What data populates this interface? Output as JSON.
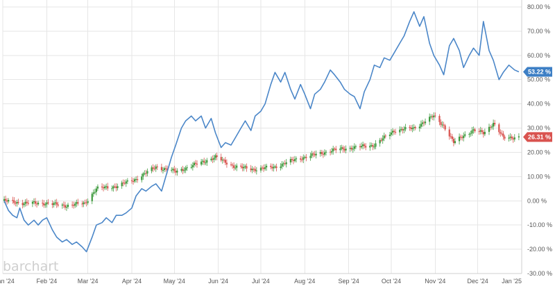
{
  "brand": {
    "watermark": "barchart"
  },
  "colors": {
    "line": "#4a86c8",
    "up": "#3d9a3d",
    "down": "#d9534f",
    "grid": "#e6e6e6",
    "tag_blue": "#3d7fc5",
    "tag_red": "#d9534f"
  },
  "chart_data": {
    "type": "line",
    "title": "",
    "xlabel": "",
    "ylabel": "",
    "ylim": [
      -30,
      80
    ],
    "y_ticks": [
      "80.00 %",
      "70.00 %",
      "60.00 %",
      "50.00 %",
      "40.00 %",
      "30.00 %",
      "20.00 %",
      "10.00 %",
      "0.00 %",
      "-10.00 %",
      "-20.00 %",
      "-30.00 %"
    ],
    "x_ticks": [
      "Jan '24",
      "Feb '24",
      "Mar '24",
      "Apr '24",
      "May '24",
      "Jun '24",
      "Jul '24",
      "Aug '24",
      "Sep '24",
      "Oct '24",
      "Nov '24",
      "Dec '24",
      "Jan '25"
    ],
    "x_range": [
      "2024-01-01",
      "2025-01-01"
    ],
    "grid": true,
    "legend": "none",
    "last_value_tags": [
      "53.22 %",
      "26.31 %"
    ],
    "series": [
      {
        "style": "line",
        "color": "#4a86c8",
        "points": [
          [
            "2024-01-02",
            0
          ],
          [
            "2024-01-05",
            -4
          ],
          [
            "2024-01-08",
            -6
          ],
          [
            "2024-01-11",
            -7
          ],
          [
            "2024-01-13",
            -3
          ],
          [
            "2024-01-16",
            -8
          ],
          [
            "2024-01-19",
            -10
          ],
          [
            "2024-01-23",
            -8
          ],
          [
            "2024-01-26",
            -10
          ],
          [
            "2024-01-29",
            -8
          ],
          [
            "2024-02-01",
            -7
          ],
          [
            "2024-02-05",
            -12
          ],
          [
            "2024-02-08",
            -15
          ],
          [
            "2024-02-12",
            -17
          ],
          [
            "2024-02-15",
            -16
          ],
          [
            "2024-02-19",
            -18
          ],
          [
            "2024-02-22",
            -17
          ],
          [
            "2024-02-26",
            -19
          ],
          [
            "2024-02-29",
            -21
          ],
          [
            "2024-03-04",
            -15
          ],
          [
            "2024-03-07",
            -10
          ],
          [
            "2024-03-11",
            -9
          ],
          [
            "2024-03-14",
            -7
          ],
          [
            "2024-03-18",
            -9
          ],
          [
            "2024-03-21",
            -6
          ],
          [
            "2024-03-25",
            -6
          ],
          [
            "2024-03-28",
            -5
          ],
          [
            "2024-04-01",
            -3
          ],
          [
            "2024-04-04",
            2
          ],
          [
            "2024-04-08",
            5
          ],
          [
            "2024-04-11",
            4
          ],
          [
            "2024-04-15",
            6
          ],
          [
            "2024-04-18",
            7
          ],
          [
            "2024-04-22",
            4
          ],
          [
            "2024-04-25",
            10
          ],
          [
            "2024-04-29",
            18
          ],
          [
            "2024-05-02",
            23
          ],
          [
            "2024-05-06",
            30
          ],
          [
            "2024-05-09",
            33
          ],
          [
            "2024-05-13",
            35
          ],
          [
            "2024-05-16",
            33
          ],
          [
            "2024-05-20",
            35
          ],
          [
            "2024-05-23",
            30
          ],
          [
            "2024-05-27",
            34
          ],
          [
            "2024-05-30",
            28
          ],
          [
            "2024-06-03",
            22
          ],
          [
            "2024-06-06",
            24
          ],
          [
            "2024-06-10",
            23
          ],
          [
            "2024-06-13",
            26
          ],
          [
            "2024-06-17",
            30
          ],
          [
            "2024-06-20",
            33
          ],
          [
            "2024-06-24",
            29
          ],
          [
            "2024-06-27",
            35
          ],
          [
            "2024-07-01",
            37
          ],
          [
            "2024-07-04",
            40
          ],
          [
            "2024-07-08",
            48
          ],
          [
            "2024-07-11",
            53
          ],
          [
            "2024-07-15",
            49
          ],
          [
            "2024-07-18",
            53
          ],
          [
            "2024-07-22",
            46
          ],
          [
            "2024-07-25",
            42
          ],
          [
            "2024-07-29",
            48
          ],
          [
            "2024-08-01",
            44
          ],
          [
            "2024-08-05",
            38
          ],
          [
            "2024-08-08",
            44
          ],
          [
            "2024-08-12",
            46
          ],
          [
            "2024-08-15",
            49
          ],
          [
            "2024-08-19",
            54
          ],
          [
            "2024-08-22",
            52
          ],
          [
            "2024-08-26",
            49
          ],
          [
            "2024-08-29",
            46
          ],
          [
            "2024-09-02",
            44
          ],
          [
            "2024-09-05",
            43
          ],
          [
            "2024-09-09",
            38
          ],
          [
            "2024-09-12",
            45
          ],
          [
            "2024-09-16",
            50
          ],
          [
            "2024-09-19",
            56
          ],
          [
            "2024-09-23",
            55
          ],
          [
            "2024-09-26",
            59
          ],
          [
            "2024-09-30",
            58
          ],
          [
            "2024-10-03",
            61
          ],
          [
            "2024-10-07",
            65
          ],
          [
            "2024-10-10",
            68
          ],
          [
            "2024-10-14",
            74
          ],
          [
            "2024-10-17",
            78
          ],
          [
            "2024-10-21",
            72
          ],
          [
            "2024-10-24",
            76
          ],
          [
            "2024-10-28",
            65
          ],
          [
            "2024-10-31",
            60
          ],
          [
            "2024-11-04",
            56
          ],
          [
            "2024-11-07",
            52
          ],
          [
            "2024-11-11",
            64
          ],
          [
            "2024-11-14",
            67
          ],
          [
            "2024-11-18",
            62
          ],
          [
            "2024-11-21",
            55
          ],
          [
            "2024-11-25",
            60
          ],
          [
            "2024-11-28",
            63
          ],
          [
            "2024-12-02",
            60
          ],
          [
            "2024-12-05",
            74
          ],
          [
            "2024-12-09",
            62
          ],
          [
            "2024-12-12",
            58
          ],
          [
            "2024-12-16",
            50
          ],
          [
            "2024-12-19",
            53
          ],
          [
            "2024-12-23",
            56
          ],
          [
            "2024-12-27",
            54
          ],
          [
            "2024-12-30",
            53.22
          ]
        ]
      },
      {
        "style": "candlestick",
        "up_color": "#3d9a3d",
        "down_color": "#d9534f",
        "points": [
          [
            "2024-01-02",
            0
          ],
          [
            "2024-01-16",
            -1
          ],
          [
            "2024-01-31",
            -1
          ],
          [
            "2024-02-14",
            -2
          ],
          [
            "2024-02-28",
            -1
          ],
          [
            "2024-03-07",
            5
          ],
          [
            "2024-03-21",
            6
          ],
          [
            "2024-04-04",
            9
          ],
          [
            "2024-04-18",
            14
          ],
          [
            "2024-05-02",
            12
          ],
          [
            "2024-05-16",
            15
          ],
          [
            "2024-05-30",
            18
          ],
          [
            "2024-06-13",
            14
          ],
          [
            "2024-06-27",
            13
          ],
          [
            "2024-07-11",
            14
          ],
          [
            "2024-07-25",
            17
          ],
          [
            "2024-08-08",
            19
          ],
          [
            "2024-08-22",
            21
          ],
          [
            "2024-09-05",
            22
          ],
          [
            "2024-09-19",
            23
          ],
          [
            "2024-10-03",
            29
          ],
          [
            "2024-10-17",
            30
          ],
          [
            "2024-10-31",
            35
          ],
          [
            "2024-11-07",
            31
          ],
          [
            "2024-11-14",
            24
          ],
          [
            "2024-11-21",
            27
          ],
          [
            "2024-11-28",
            29
          ],
          [
            "2024-12-05",
            28
          ],
          [
            "2024-12-12",
            32
          ],
          [
            "2024-12-19",
            26
          ],
          [
            "2024-12-30",
            26.31
          ]
        ]
      }
    ]
  }
}
